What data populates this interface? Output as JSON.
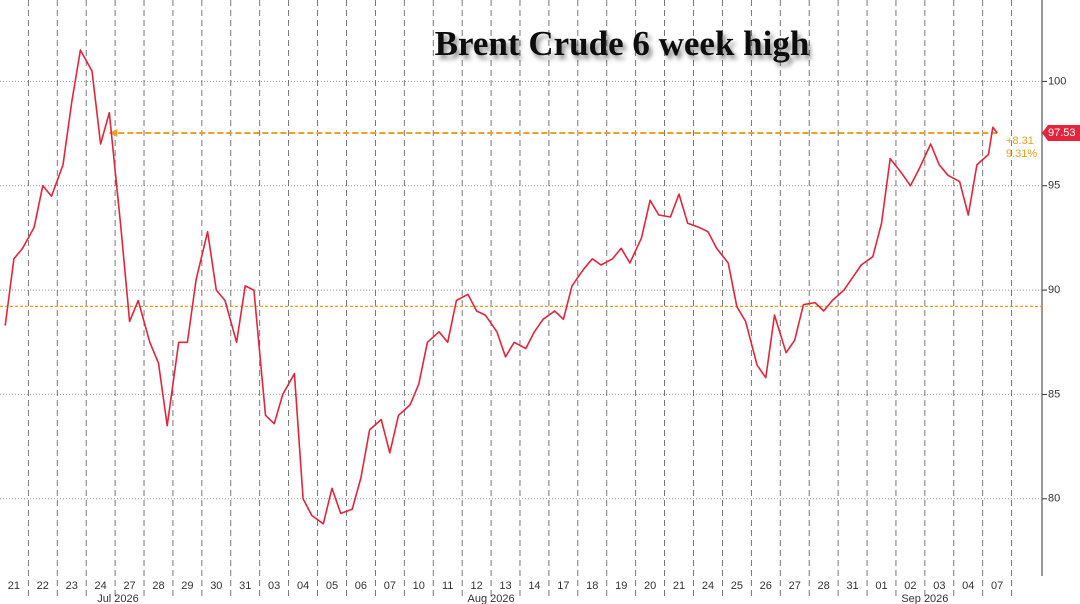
{
  "chart_data": {
    "type": "line",
    "title": "Brent Crude 6 week high",
    "color": "#e4243c",
    "x": [
      -0.3,
      0,
      0.3,
      0.7,
      1,
      1.3,
      1.7,
      2,
      2.3,
      2.7,
      3,
      3.3,
      3.7,
      4,
      4.3,
      4.7,
      5,
      5.3,
      5.7,
      6,
      6.3,
      6.7,
      7,
      7.3,
      7.7,
      8,
      8.3,
      8.7,
      9,
      9.3,
      9.7,
      10,
      10.3,
      10.7,
      11,
      11.3,
      11.7,
      12,
      12.3,
      12.7,
      13,
      13.3,
      13.7,
      14,
      14.3,
      14.7,
      15,
      15.3,
      15.7,
      16,
      16.3,
      16.7,
      17,
      17.3,
      17.7,
      18,
      18.3,
      18.7,
      19,
      19.3,
      19.7,
      20,
      20.3,
      20.7,
      21,
      21.3,
      21.7,
      22,
      22.3,
      22.7,
      23,
      23.3,
      23.7,
      24,
      24.3,
      24.7,
      25,
      25.3,
      25.7,
      26,
      26.3,
      26.7,
      27,
      27.3,
      27.7,
      28,
      28.3,
      28.7,
      29,
      29.3,
      29.7,
      30,
      30.3,
      30.7,
      31,
      31.3,
      31.7,
      32,
      32.3,
      32.7,
      33,
      33.3,
      33.7,
      33.85,
      34
    ],
    "values": [
      88.3,
      91.5,
      92,
      93,
      95,
      94.5,
      96,
      99,
      101.5,
      100.5,
      97,
      98.5,
      93,
      88.5,
      89.5,
      87.5,
      86.5,
      83.5,
      87.5,
      87.5,
      90.5,
      92.8,
      90,
      89.5,
      87.5,
      90.2,
      90,
      84,
      83.6,
      85,
      86,
      80,
      79.2,
      78.8,
      80.5,
      79.3,
      79.5,
      81,
      83.3,
      83.8,
      82.2,
      84,
      84.5,
      85.5,
      87.5,
      88,
      87.5,
      89.5,
      89.8,
      89,
      88.8,
      88,
      86.8,
      87.5,
      87.2,
      88,
      88.6,
      89,
      88.6,
      90.2,
      91,
      91.5,
      91.2,
      91.5,
      92,
      91.3,
      92.5,
      94.3,
      93.6,
      93.5,
      94.6,
      93.2,
      93,
      92.8,
      92,
      91.3,
      89.2,
      88.5,
      86.4,
      85.8,
      88.8,
      87,
      87.6,
      89.3,
      89.4,
      89,
      89.5,
      90,
      90.6,
      91.2,
      91.6,
      93.2,
      96.3,
      95.6,
      95,
      95.8,
      97,
      96,
      95.5,
      95.2,
      93.6,
      96,
      96.5,
      97.8,
      97.53
    ],
    "xlim": [
      -0.48,
      35.55
    ],
    "xticks": [
      {
        "value": 0,
        "label": "21"
      },
      {
        "value": 1,
        "label": "22"
      },
      {
        "value": 2,
        "label": "23"
      },
      {
        "value": 3,
        "label": "24"
      },
      {
        "value": 4,
        "label": "27"
      },
      {
        "value": 5,
        "label": "28"
      },
      {
        "value": 6,
        "label": "29"
      },
      {
        "value": 7,
        "label": "30"
      },
      {
        "value": 8,
        "label": "31"
      },
      {
        "value": 9,
        "label": "03"
      },
      {
        "value": 10,
        "label": "04"
      },
      {
        "value": 11,
        "label": "05"
      },
      {
        "value": 12,
        "label": "06"
      },
      {
        "value": 13,
        "label": "07"
      },
      {
        "value": 14,
        "label": "10"
      },
      {
        "value": 15,
        "label": "11"
      },
      {
        "value": 16,
        "label": "12"
      },
      {
        "value": 17,
        "label": "13"
      },
      {
        "value": 18,
        "label": "14"
      },
      {
        "value": 19,
        "label": "17"
      },
      {
        "value": 20,
        "label": "18"
      },
      {
        "value": 21,
        "label": "19"
      },
      {
        "value": 22,
        "label": "20"
      },
      {
        "value": 23,
        "label": "21"
      },
      {
        "value": 24,
        "label": "24"
      },
      {
        "value": 25,
        "label": "25"
      },
      {
        "value": 26,
        "label": "26"
      },
      {
        "value": 27,
        "label": "27"
      },
      {
        "value": 28,
        "label": "28"
      },
      {
        "value": 29,
        "label": "31"
      },
      {
        "value": 30,
        "label": "01"
      },
      {
        "value": 31,
        "label": "02"
      },
      {
        "value": 32,
        "label": "03"
      },
      {
        "value": 33,
        "label": "04"
      },
      {
        "value": 34,
        "label": "07"
      }
    ],
    "month_labels": [
      {
        "value": 3.6,
        "label": "Jul 2026"
      },
      {
        "value": 16.5,
        "label": "Aug 2026"
      },
      {
        "value": 31.5,
        "label": "Sep 2026"
      }
    ],
    "ylim": [
      76.3,
      103.9
    ],
    "yticks": [
      80,
      85,
      90,
      95,
      100
    ],
    "reference_lines": [
      {
        "value": 97.53,
        "color": "#f0a020"
      },
      {
        "value": 89.22,
        "color": "#f0a020"
      }
    ],
    "change": {
      "value": 8.31,
      "label": "+8.31"
    },
    "change_pct": {
      "value": 9.31,
      "label": "9.31%"
    }
  }
}
